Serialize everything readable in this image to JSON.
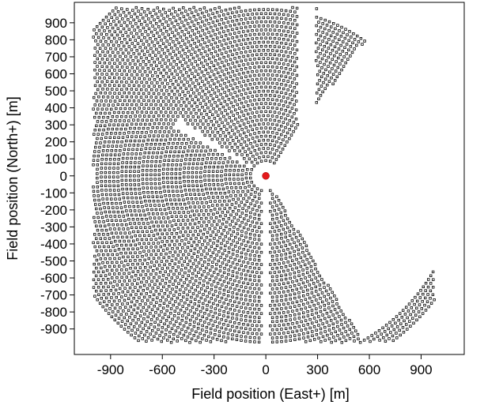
{
  "chart_data": {
    "type": "scatter",
    "title": "",
    "xlabel": "Field position (East+) [m]",
    "ylabel": "Field position (North+) [m]",
    "xlim": [
      -1110,
      1150
    ],
    "ylim": [
      -1050,
      1020
    ],
    "x_ticks": [
      -900,
      -600,
      -300,
      0,
      300,
      600,
      900
    ],
    "y_ticks": [
      900,
      800,
      700,
      600,
      500,
      400,
      300,
      200,
      100,
      0,
      -100,
      -200,
      -300,
      -400,
      -500,
      -600,
      -700,
      -800,
      -900
    ],
    "grid": false,
    "legend": "none",
    "series": [
      {
        "description_kind": "heliostats",
        "marker": "small-open-square",
        "color": "#000000",
        "ring_first_radius": 90,
        "ring_last_radius": 1330,
        "ring_spacing": 24,
        "field_x_range": [
          -1000,
          980
        ],
        "field_y_range": [
          -980,
          990
        ],
        "gaps": [
          {
            "kind": "north-strip",
            "x_range": [
              185,
              290
            ],
            "y_min": 0
          },
          {
            "kind": "wedge-northwest",
            "bearing_deg": [
              298,
              304
            ],
            "radius_range": [
              60,
              600
            ]
          },
          {
            "kind": "south-strip",
            "x_range": [
              -15,
              15
            ],
            "y_max": -50
          },
          {
            "kind": "east-sector",
            "bearing_deg_min": 36,
            "bearing_deg_max": 150,
            "radius_max": 1100
          }
        ]
      },
      {
        "description_kind": "tower",
        "marker": "filled-circle",
        "color": "#e31a1c",
        "x": [
          0
        ],
        "y": [
          0
        ]
      }
    ]
  }
}
